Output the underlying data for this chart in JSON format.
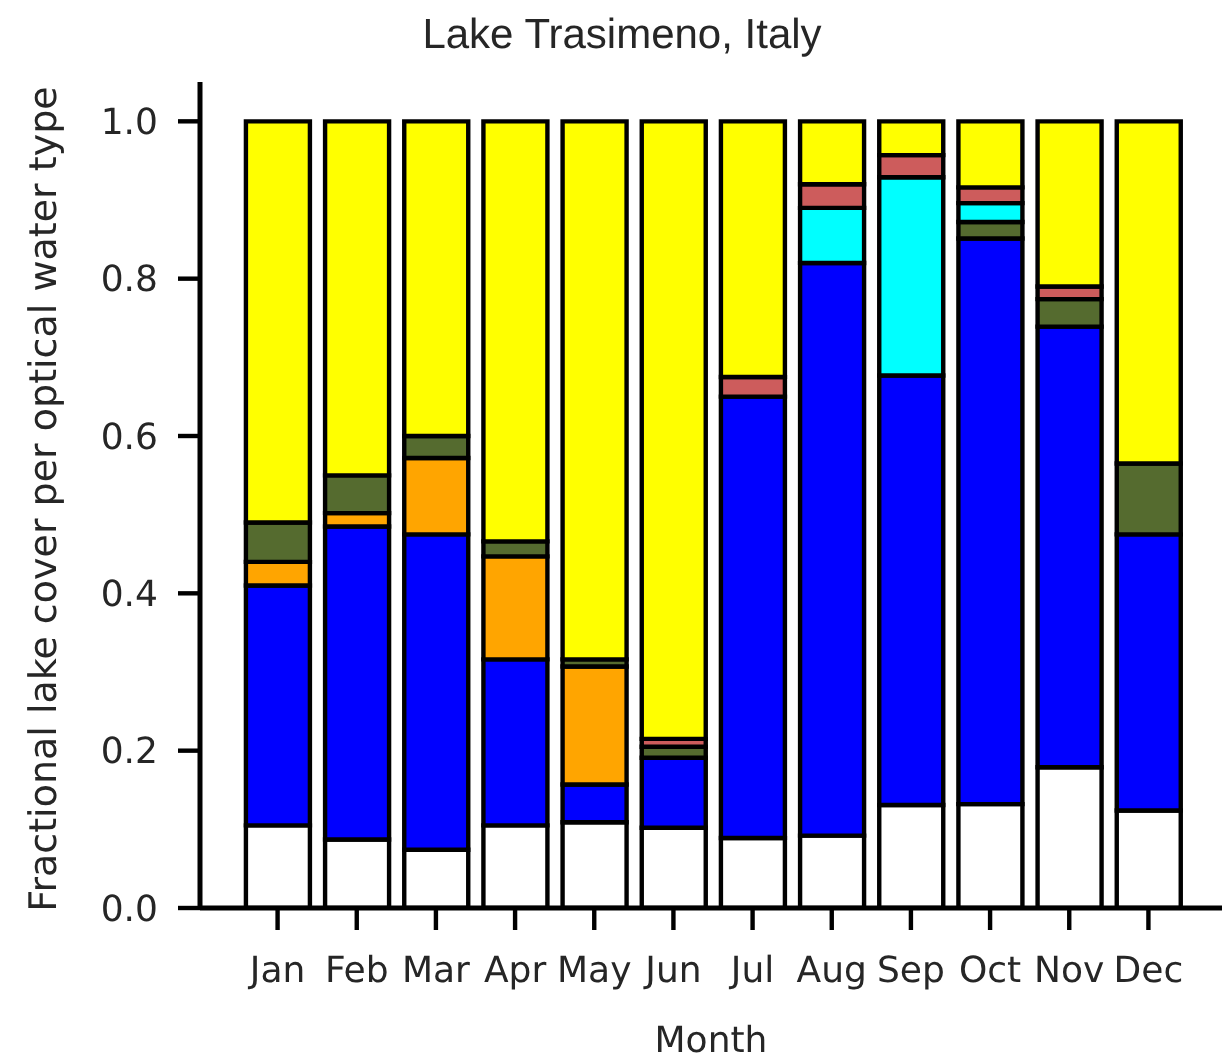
{
  "chart_data": {
    "type": "bar",
    "title": "Lake Trasimeno, Italy",
    "xlabel": "Month",
    "ylabel": "Fractional lake cover per optical water type",
    "categories": [
      "Jan",
      "Feb",
      "Mar",
      "Apr",
      "May",
      "Jun",
      "Jul",
      "Aug",
      "Sep",
      "Oct",
      "Nov",
      "Dec"
    ],
    "stacked": true,
    "series": [
      {
        "color": "#ffffff",
        "values": [
          0.105,
          0.087,
          0.074,
          0.105,
          0.109,
          0.102,
          0.089,
          0.092,
          0.131,
          0.132,
          0.179,
          0.124
        ]
      },
      {
        "color": "#0000ff",
        "values": [
          0.305,
          0.398,
          0.401,
          0.211,
          0.048,
          0.089,
          0.561,
          0.728,
          0.546,
          0.719,
          0.56,
          0.351
        ]
      },
      {
        "color": "#ffa500",
        "values": [
          0.03,
          0.017,
          0.097,
          0.131,
          0.15,
          0,
          0,
          0,
          0,
          0,
          0,
          0
        ]
      },
      {
        "color": "#556b2f",
        "values": [
          0.05,
          0.048,
          0.028,
          0.019,
          0.009,
          0.014,
          0,
          0,
          0,
          0.021,
          0.035,
          0.09
        ]
      },
      {
        "color": "#00ffff",
        "values": [
          0,
          0,
          0,
          0,
          0,
          0,
          0,
          0.07,
          0.252,
          0.024,
          0,
          0
        ]
      },
      {
        "color": "#cd5c5c",
        "values": [
          0,
          0,
          0,
          0,
          0,
          0.01,
          0.025,
          0.03,
          0.028,
          0.02,
          0.016,
          0
        ]
      },
      {
        "color": "#ffff00",
        "values": [
          0.51,
          0.45,
          0.4,
          0.534,
          0.684,
          0.785,
          0.325,
          0.08,
          0.043,
          0.084,
          0.21,
          0.435
        ]
      }
    ],
    "ylim": [
      0,
      1.05
    ],
    "yticks": [
      {
        "value": 0,
        "label": "0.0"
      },
      0.2,
      0.4,
      0.6,
      0.8,
      {
        "value": 1,
        "label": "1.0"
      }
    ]
  }
}
